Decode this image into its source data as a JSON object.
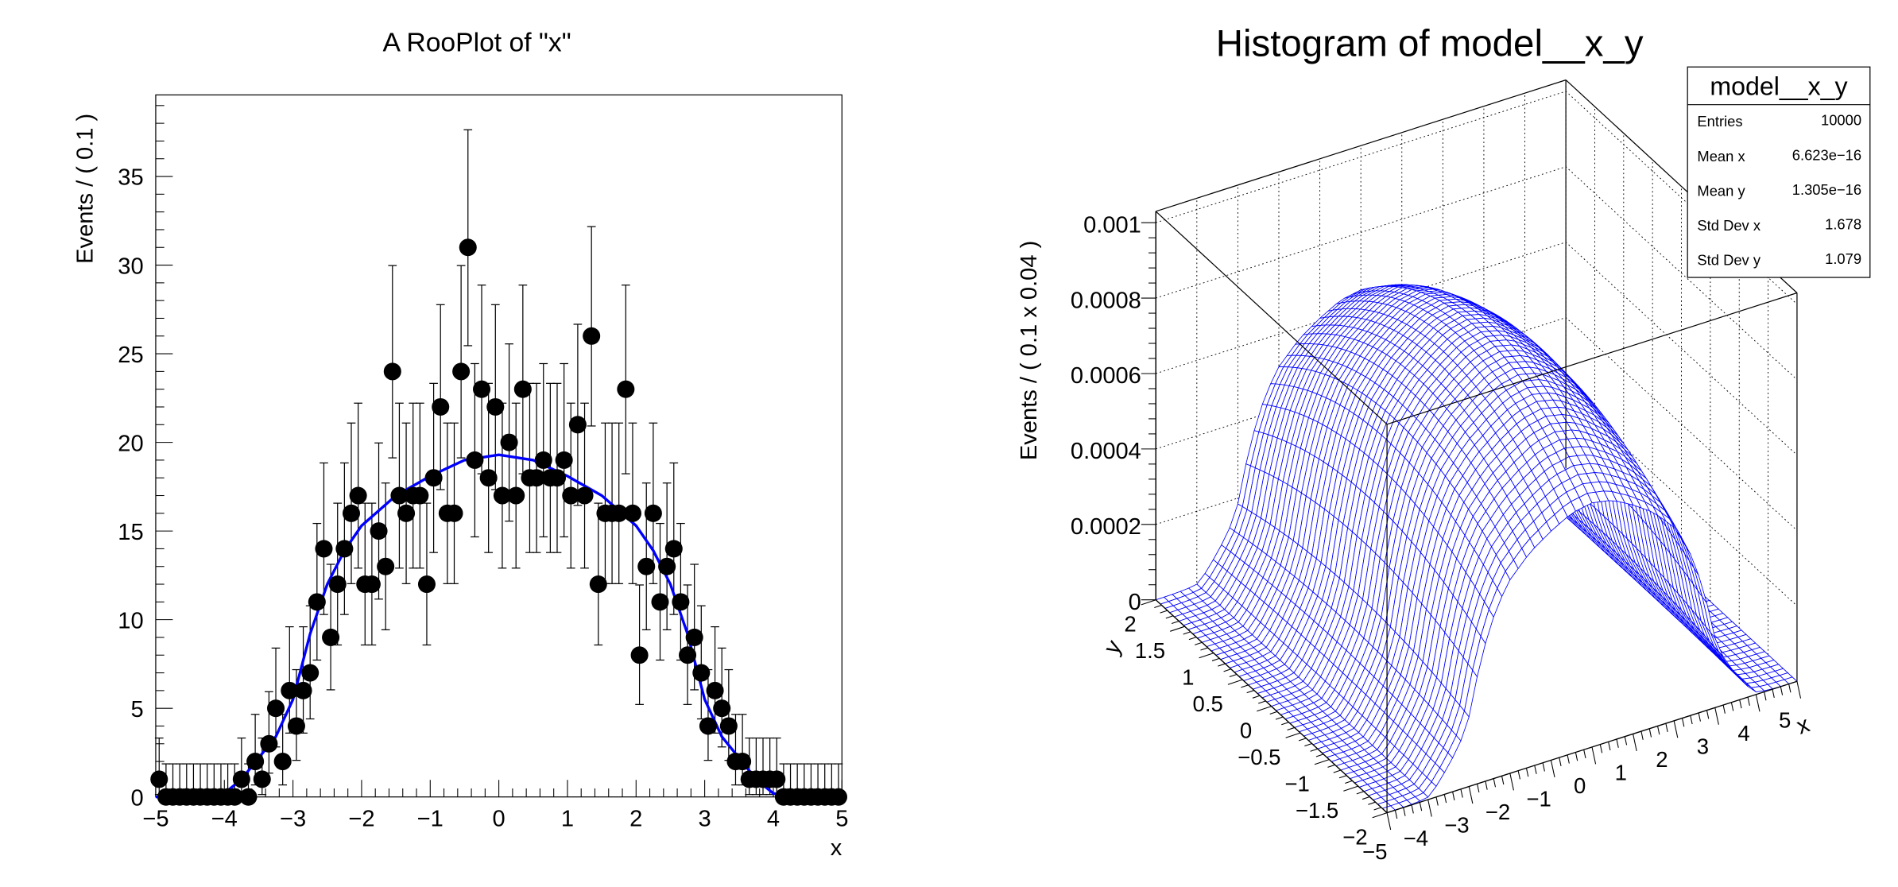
{
  "chart_data": [
    {
      "type": "scatter",
      "title": "A RooPlot of \"x\"",
      "xlabel": "x",
      "ylabel": "Events / ( 0.1 )",
      "xlim": [
        -5,
        5
      ],
      "ylim": [
        0,
        39.6
      ],
      "x_ticks": [
        -5,
        -4,
        -3,
        -2,
        -1,
        0,
        1,
        2,
        3,
        4,
        5
      ],
      "x_tick_labels": [
        "−5",
        "−4",
        "−3",
        "−2",
        "−1",
        "0",
        "1",
        "2",
        "3",
        "4",
        "5"
      ],
      "y_ticks": [
        0,
        5,
        10,
        15,
        20,
        25,
        30,
        35
      ],
      "y_tick_labels": [
        "0",
        "5",
        "10",
        "15",
        "20",
        "25",
        "30",
        "35"
      ],
      "grid": false,
      "marker_color": "#000000",
      "curve_color": "#0000ff",
      "bin_width": 0.1,
      "points": {
        "x_first_bin_center": -4.95,
        "values": [
          1,
          0,
          0,
          0,
          0,
          0,
          0,
          0,
          0,
          0,
          0,
          0,
          1,
          0,
          2,
          1,
          3,
          5,
          2,
          6,
          4,
          6,
          7,
          11,
          14,
          9,
          12,
          14,
          16,
          17,
          12,
          12,
          15,
          13,
          24,
          17,
          16,
          17,
          17,
          12,
          18,
          22,
          16,
          16,
          24,
          31,
          19,
          23,
          18,
          22,
          17,
          20,
          17,
          23,
          18,
          18,
          19,
          18,
          18,
          19,
          17,
          21,
          17,
          26,
          12,
          16,
          16,
          16,
          23,
          16,
          8,
          13,
          16,
          11,
          13,
          14,
          11,
          8,
          9,
          7,
          4,
          6,
          5,
          4,
          2,
          2,
          1,
          1,
          1,
          1,
          1,
          0,
          0,
          0,
          0,
          0,
          0,
          0,
          0,
          0
        ]
      },
      "curve": {
        "x": [
          -5,
          -4.5,
          -4.25,
          -4,
          -3.75,
          -3.5,
          -3.25,
          -3,
          -2.75,
          -2.5,
          -2.25,
          -2,
          -1.5,
          -1,
          -0.5,
          0,
          0.5,
          1,
          1.5,
          2,
          2.25,
          2.5,
          2.75,
          3,
          3.25,
          3.5,
          3.75,
          4,
          4.25,
          4.5,
          5
        ],
        "y": [
          0,
          0.02,
          0.06,
          0.2,
          1.0,
          2.2,
          3.4,
          5.5,
          9.2,
          12,
          13.9,
          15.3,
          17,
          18.1,
          19,
          19.3,
          19,
          18.1,
          17,
          15.3,
          13.9,
          12,
          9.2,
          5.5,
          3.4,
          2.2,
          1.0,
          0.2,
          0.06,
          0.02,
          0
        ]
      }
    },
    {
      "type": "surface",
      "title": "Histogram of model__x_y",
      "xlabel": "x",
      "ylabel": "y",
      "zlabel": "Events / ( 0.1 x 0.04 )",
      "xlim": [
        -5,
        5
      ],
      "ylim": [
        -2,
        2
      ],
      "zlim": [
        0,
        0.00103
      ],
      "z_max": 0.00083,
      "color": "#0000ff",
      "x_ticks": [
        -5,
        -4,
        -3,
        -2,
        -1,
        0,
        1,
        2,
        3,
        4,
        5
      ],
      "x_tick_labels": [
        "−5",
        "−4",
        "−3",
        "−2",
        "−1",
        "0",
        "1",
        "2",
        "3",
        "4",
        "5"
      ],
      "y_ticks": [
        -2,
        -1.5,
        -1,
        -0.5,
        0,
        0.5,
        1,
        1.5,
        2
      ],
      "y_tick_labels": [
        "−2",
        "−1.5",
        "−1",
        "−0.5",
        "0",
        "0.5",
        "1",
        "1.5",
        "2"
      ],
      "z_ticks": [
        0,
        0.0002,
        0.0004,
        0.0006,
        0.0008,
        0.001
      ],
      "z_tick_labels": [
        "0",
        "0.0002",
        "0.0004",
        "0.0006",
        "0.0008",
        "0.001"
      ],
      "stats": {
        "name": "model__x_y",
        "rows": [
          {
            "label": "Entries",
            "value": "10000"
          },
          {
            "label": "Mean x",
            "value": "6.623e−16"
          },
          {
            "label": "Mean y",
            "value": "1.305e−16"
          },
          {
            "label": "Std Dev x",
            "value": "1.678"
          },
          {
            "label": "Std Dev y",
            "value": "1.079"
          }
        ]
      }
    }
  ]
}
